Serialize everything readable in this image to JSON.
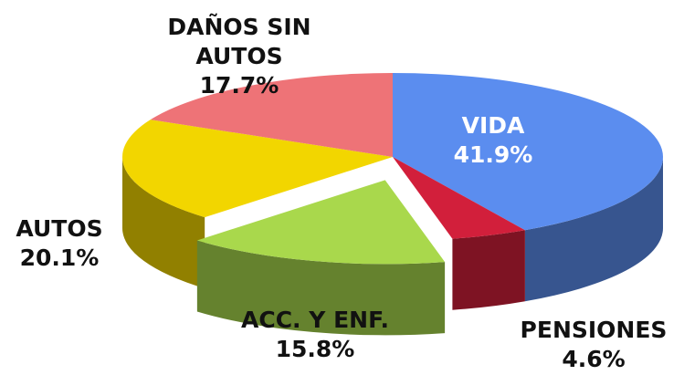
{
  "chart_data": {
    "type": "pie",
    "categories": [
      "VIDA",
      "PENSIONES",
      "ACC. Y ENF.",
      "AUTOS",
      "DAÑOS SIN AUTOS"
    ],
    "values": [
      41.9,
      4.6,
      15.8,
      20.1,
      17.7
    ],
    "value_labels": [
      "41.9%",
      "4.6%",
      "15.8%",
      "20.1%",
      "17.7%"
    ],
    "colors": [
      "#5b8def",
      "#d21f3b",
      "#a9d84c",
      "#f2d600",
      "#ee7377"
    ]
  }
}
